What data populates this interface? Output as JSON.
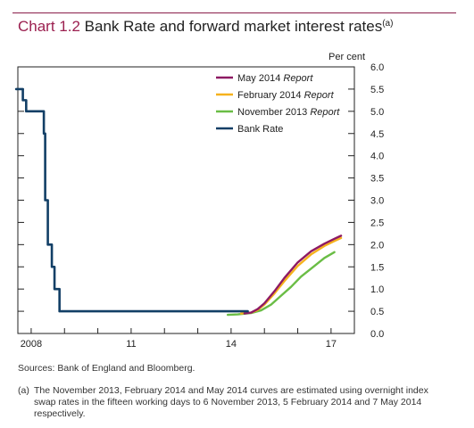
{
  "header": {
    "chart_number": "Chart 1.2",
    "title_text": "Bank Rate and forward market interest rates",
    "title_note": "(a)"
  },
  "colors": {
    "title_accent": "#9b1f4f",
    "may_2014": "#8e1a63",
    "feb_2014": "#f6b21d",
    "nov_2013": "#6abd45",
    "bank_rate": "#123f66"
  },
  "chart_data": {
    "type": "line",
    "title": "Bank Rate and forward market interest rates",
    "ylabel": "Per cent",
    "xlim": [
      2007.6,
      2017.7
    ],
    "ylim": [
      0,
      6
    ],
    "y_ticks": [
      "0.0",
      "0.5",
      "1.0",
      "1.5",
      "2.0",
      "2.5",
      "3.0",
      "3.5",
      "4.0",
      "4.5",
      "5.0",
      "5.5",
      "6.0"
    ],
    "x_tick_labels": [
      {
        "x": 2008,
        "label": "2008"
      },
      {
        "x": 2011,
        "label": "11"
      },
      {
        "x": 2014,
        "label": "14"
      },
      {
        "x": 2017,
        "label": "17"
      }
    ],
    "x_minor_ticks": [
      2008,
      2009,
      2010,
      2011,
      2012,
      2013,
      2014,
      2015,
      2016,
      2017
    ],
    "legend_position": "top-right",
    "series": [
      {
        "name": "May 2014",
        "name_suffix": "Report",
        "color_key": "may_2014",
        "x": [
          2014.4,
          2014.6,
          2014.8,
          2015.0,
          2015.3,
          2015.6,
          2016.0,
          2016.4,
          2016.8,
          2017.1,
          2017.3
        ],
        "y": [
          0.45,
          0.47,
          0.55,
          0.68,
          0.95,
          1.25,
          1.6,
          1.85,
          2.02,
          2.13,
          2.2
        ]
      },
      {
        "name": "February 2014",
        "name_suffix": "Report",
        "color_key": "feb_2014",
        "x": [
          2014.3,
          2014.6,
          2014.8,
          2015.0,
          2015.3,
          2015.6,
          2016.0,
          2016.4,
          2016.8,
          2017.1,
          2017.3
        ],
        "y": [
          0.45,
          0.47,
          0.53,
          0.65,
          0.9,
          1.18,
          1.52,
          1.78,
          1.97,
          2.08,
          2.15
        ]
      },
      {
        "name": "November 2013",
        "name_suffix": "Report",
        "color_key": "nov_2013",
        "x": [
          2013.9,
          2014.2,
          2014.6,
          2014.9,
          2015.2,
          2015.5,
          2015.8,
          2016.1,
          2016.5,
          2016.8,
          2017.1
        ],
        "y": [
          0.42,
          0.43,
          0.46,
          0.52,
          0.65,
          0.85,
          1.05,
          1.28,
          1.52,
          1.7,
          1.83
        ]
      },
      {
        "name": "Bank Rate",
        "name_suffix": "",
        "color_key": "bank_rate",
        "step": true,
        "x": [
          2007.55,
          2007.65,
          2007.75,
          2007.85,
          2008.3,
          2008.38,
          2008.42,
          2008.45,
          2008.5,
          2008.55,
          2008.62,
          2008.66,
          2008.7,
          2008.85,
          2014.5
        ],
        "y": [
          5.5,
          5.5,
          5.25,
          5.0,
          5.0,
          4.5,
          3.0,
          3.0,
          2.0,
          2.0,
          1.5,
          1.5,
          1.0,
          0.5,
          0.5
        ]
      }
    ]
  },
  "sources": "Sources: Bank of England and Bloomberg.",
  "footnote": {
    "marker": "(a)",
    "text": "The November 2013, February 2014 and May 2014 curves are estimated using overnight index swap rates in the fifteen working days to 6 November 2013, 5 February 2014 and 7 May 2014 respectively."
  }
}
